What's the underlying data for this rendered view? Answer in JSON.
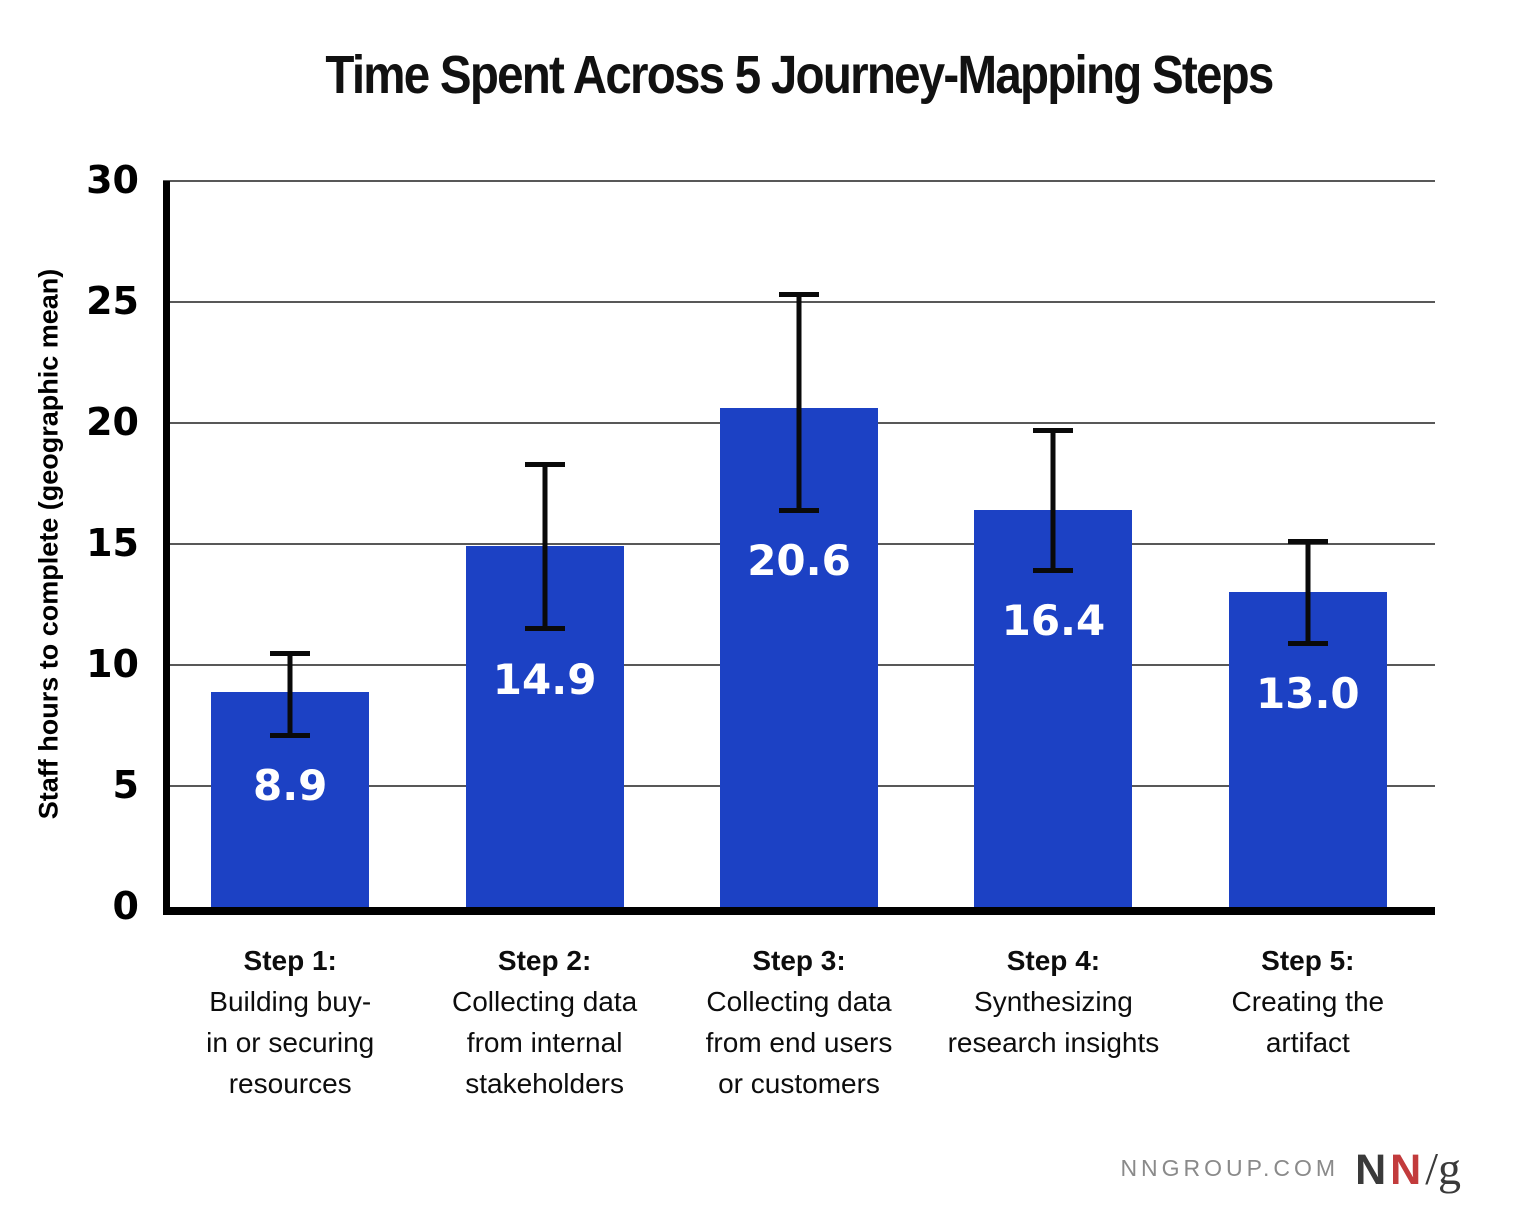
{
  "chart_data": {
    "type": "bar",
    "title": "Time Spent Across 5 Journey-Mapping Steps",
    "xlabel": "",
    "ylabel": "Staff hours to complete (geographic mean)",
    "ylim": [
      0,
      30
    ],
    "yticks": [
      0,
      5,
      10,
      15,
      20,
      25,
      30
    ],
    "grid": true,
    "legend": false,
    "bar_color": "#1c41c4",
    "value_label_color": "#ffffff",
    "categories": [
      {
        "step": "Step 1:",
        "lines": [
          "Building buy-",
          "in or securing",
          "resources"
        ]
      },
      {
        "step": "Step 2:",
        "lines": [
          "Collecting data",
          "from internal",
          "stakeholders"
        ]
      },
      {
        "step": "Step 3:",
        "lines": [
          "Collecting data",
          "from end users",
          "or customers"
        ]
      },
      {
        "step": "Step 4:",
        "lines": [
          "Synthesizing",
          "research insights"
        ]
      },
      {
        "step": "Step 5:",
        "lines": [
          "Creating the",
          "artifact"
        ]
      }
    ],
    "values": [
      8.9,
      14.9,
      20.6,
      16.4,
      13.0
    ],
    "value_labels": [
      "8.9",
      "14.9",
      "20.6",
      "16.4",
      "13.0"
    ],
    "error_bars": [
      {
        "low": 7.0,
        "high": 10.6
      },
      {
        "low": 11.4,
        "high": 18.4
      },
      {
        "low": 16.3,
        "high": 25.4
      },
      {
        "low": 13.8,
        "high": 19.8
      },
      {
        "low": 10.8,
        "high": 15.2
      }
    ]
  },
  "colors": {
    "bar": "#1c41c4",
    "gridline": "#585858",
    "axis": "#000000",
    "title_text": "#111111",
    "value_text": "#ffffff",
    "footer_gray": "#8a8a8a",
    "logo_dark": "#3a3a3a",
    "logo_red": "#c23b3c"
  },
  "footer": {
    "site": "NNGROUP.COM",
    "logo": {
      "letter1": "N",
      "letter2": "N",
      "slash": "/",
      "letter3": "g"
    }
  }
}
